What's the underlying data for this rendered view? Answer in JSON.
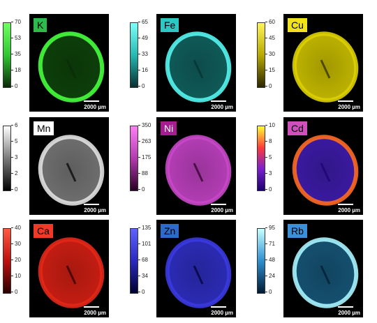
{
  "panels": [
    {
      "element": "K",
      "label_bg": "#2dbb4e",
      "label_color": "#000000",
      "ticks": [
        "70",
        "53",
        "35",
        "18",
        "0"
      ],
      "cmap": [
        "#0b2a08",
        "#2ec831",
        "#6fff62"
      ],
      "ring": "#46ff3c",
      "fill": "#0d3f0a",
      "scale": "2000 µm"
    },
    {
      "element": "Fe",
      "label_bg": "#2ec7c4",
      "label_color": "#000000",
      "ticks": [
        "65",
        "49",
        "33",
        "16",
        "0"
      ],
      "cmap": [
        "#05302f",
        "#25b9b4",
        "#7ffffa"
      ],
      "ring": "#55f5ef",
      "fill": "#0f5a58",
      "scale": "2000 µm"
    },
    {
      "element": "Cu",
      "label_bg": "#f2e21b",
      "label_color": "#000000",
      "ticks": [
        "60",
        "45",
        "30",
        "15",
        "0"
      ],
      "cmap": [
        "#2b2600",
        "#b8a900",
        "#fff45a"
      ],
      "ring": "#ddd000",
      "fill": "#bdb200",
      "scale": "2000 µm"
    },
    {
      "element": "Mn",
      "label_bg": "#ffffff",
      "label_color": "#000000",
      "ticks": [
        "6",
        "5",
        "3",
        "2",
        "0"
      ],
      "cmap": [
        "#000000",
        "#7a7a7a",
        "#ffffff"
      ],
      "ring": "#e0e0e0",
      "fill": "#6e6e6e",
      "scale": "2000 µm"
    },
    {
      "element": "Ni",
      "label_bg": "#a61d92",
      "label_color": "#ffffff",
      "ticks": [
        "350",
        "263",
        "175",
        "88",
        "0"
      ],
      "cmap": [
        "#2a0024",
        "#b23ab0",
        "#ff7ff5"
      ],
      "ring": "#c648c6",
      "fill": "#b33db4",
      "scale": "2000 µm"
    },
    {
      "element": "Cd",
      "label_bg": "#cf4fbc",
      "label_color": "#000000",
      "ticks": [
        "10",
        "8",
        "5",
        "3",
        "0"
      ],
      "cmap": [
        "#1d0070",
        "#7a1fd0",
        "#ff3a3a",
        "#ffff30"
      ],
      "ring": "#ff6a20",
      "fill": "#3a1aa0",
      "scale": "2000 µm"
    },
    {
      "element": "Ca",
      "label_bg": "#ef3a2a",
      "label_color": "#000000",
      "ticks": [
        "40",
        "30",
        "20",
        "10",
        "0"
      ],
      "cmap": [
        "#2a0000",
        "#c01010",
        "#ff5a40"
      ],
      "ring": "#e22818",
      "fill": "#c41d12",
      "scale": "2000 µm"
    },
    {
      "element": "Zn",
      "label_bg": "#2f6ac7",
      "label_color": "#000000",
      "ticks": [
        "135",
        "101",
        "68",
        "34",
        "0"
      ],
      "cmap": [
        "#000030",
        "#2a2ac0",
        "#6060ff"
      ],
      "ring": "#3a3ae0",
      "fill": "#2b2bb4",
      "scale": "2000 µm"
    },
    {
      "element": "Rb",
      "label_bg": "#3c90d8",
      "label_color": "#000000",
      "ticks": [
        "95",
        "71",
        "48",
        "24",
        "0"
      ],
      "cmap": [
        "#001a33",
        "#2e8fd0",
        "#c8ffff"
      ],
      "ring": "#a8f4ff",
      "fill": "#15506f",
      "scale": "2000 µm"
    }
  ]
}
